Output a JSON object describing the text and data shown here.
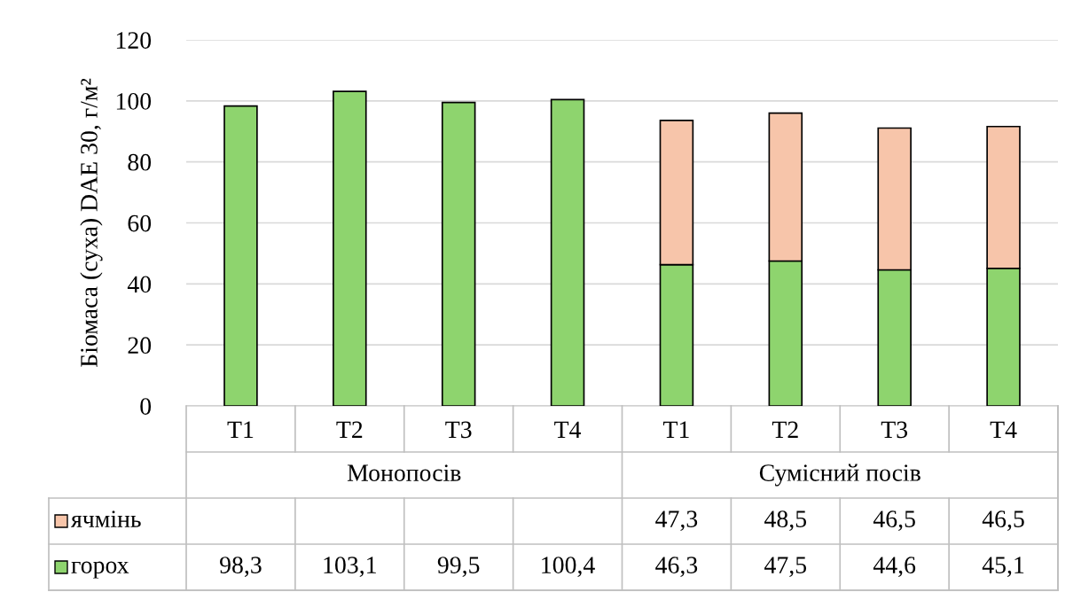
{
  "chart_data": {
    "type": "bar",
    "stacked": true,
    "ylabel": "Біомаса (суха) DAE 30, г/м²",
    "categories": [
      "T1",
      "T2",
      "T3",
      "T4",
      "T1",
      "T2",
      "T3",
      "T4"
    ],
    "annotations": [
      "Монопосів",
      "Сумісний посів"
    ],
    "series": [
      {
        "name": "горох",
        "color": "#8ed46e",
        "values": [
          98.3,
          103.1,
          99.5,
          100.4,
          46.3,
          47.5,
          44.6,
          45.1
        ],
        "value_labels": [
          "98,3",
          "103,1",
          "99,5",
          "100,4",
          "46,3",
          "47,5",
          "44,6",
          "45,1"
        ]
      },
      {
        "name": "ячмінь",
        "color": "#f7c5aa",
        "values": [
          null,
          null,
          null,
          null,
          47.3,
          48.5,
          46.5,
          46.5
        ],
        "value_labels": [
          null,
          null,
          null,
          null,
          "47,3",
          "48,5",
          "46,5",
          "46,5"
        ]
      }
    ],
    "ylim": [
      0,
      120
    ],
    "yticks": [
      0,
      20,
      40,
      60,
      80,
      100,
      120
    ],
    "grid": "y",
    "legend": "bottom"
  }
}
